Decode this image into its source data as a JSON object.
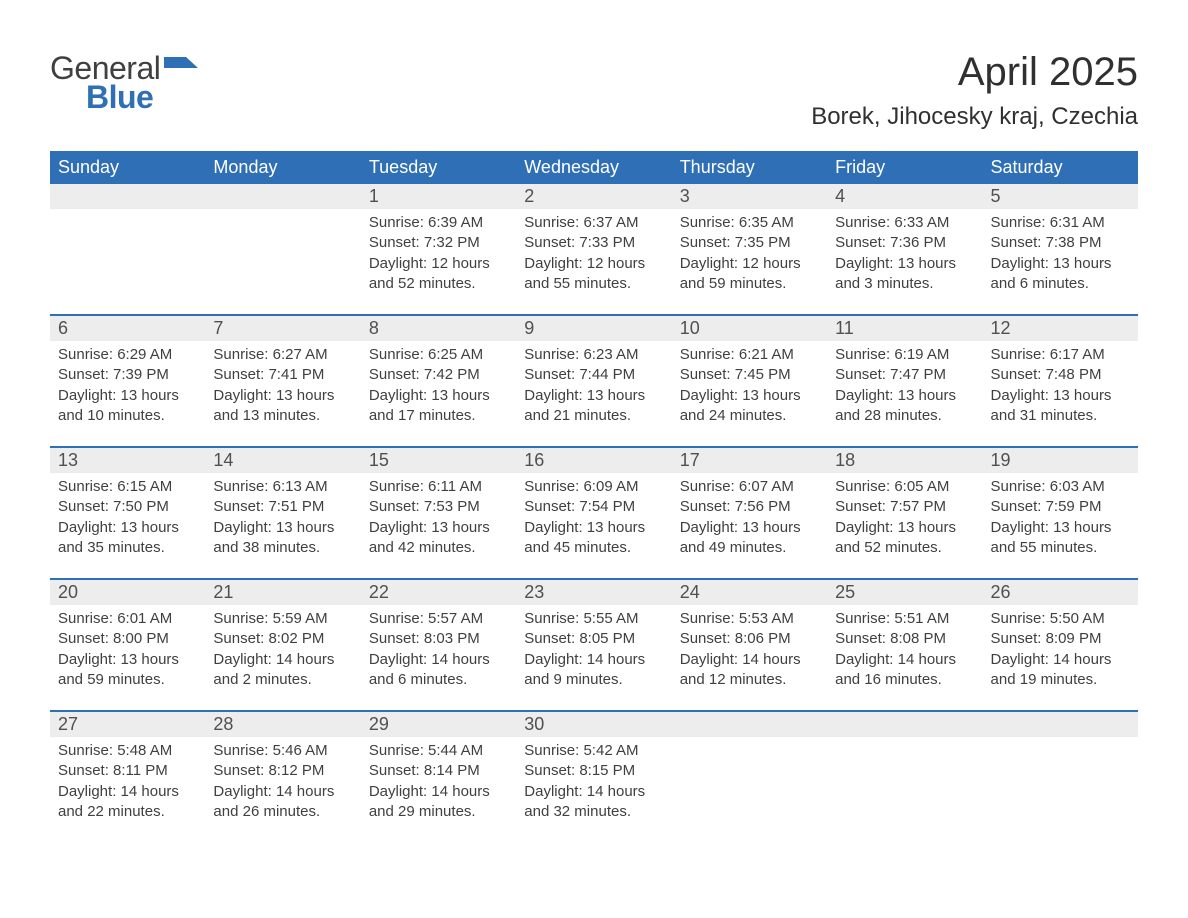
{
  "logo": {
    "word1": "General",
    "word2": "Blue"
  },
  "title": "April 2025",
  "location": "Borek, Jihocesky kraj, Czechia",
  "colors": {
    "header_bg": "#2f6fb5",
    "header_text": "#ffffff",
    "daynum_bg": "#ededed",
    "row_divider": "#2f6fb5",
    "body_text": "#404040",
    "page_bg": "#ffffff",
    "logo_accent": "#2f6fb5"
  },
  "fonts": {
    "title_size_pt": 30,
    "location_size_pt": 18,
    "header_size_pt": 14,
    "daynum_size_pt": 14,
    "cell_size_pt": 11
  },
  "layout": {
    "columns": 7,
    "weeks": 5,
    "start_day_index": 2
  },
  "weekdays": [
    "Sunday",
    "Monday",
    "Tuesday",
    "Wednesday",
    "Thursday",
    "Friday",
    "Saturday"
  ],
  "days": [
    {
      "n": 1,
      "sunrise": "6:39 AM",
      "sunset": "7:32 PM",
      "daylight": "12 hours and 52 minutes."
    },
    {
      "n": 2,
      "sunrise": "6:37 AM",
      "sunset": "7:33 PM",
      "daylight": "12 hours and 55 minutes."
    },
    {
      "n": 3,
      "sunrise": "6:35 AM",
      "sunset": "7:35 PM",
      "daylight": "12 hours and 59 minutes."
    },
    {
      "n": 4,
      "sunrise": "6:33 AM",
      "sunset": "7:36 PM",
      "daylight": "13 hours and 3 minutes."
    },
    {
      "n": 5,
      "sunrise": "6:31 AM",
      "sunset": "7:38 PM",
      "daylight": "13 hours and 6 minutes."
    },
    {
      "n": 6,
      "sunrise": "6:29 AM",
      "sunset": "7:39 PM",
      "daylight": "13 hours and 10 minutes."
    },
    {
      "n": 7,
      "sunrise": "6:27 AM",
      "sunset": "7:41 PM",
      "daylight": "13 hours and 13 minutes."
    },
    {
      "n": 8,
      "sunrise": "6:25 AM",
      "sunset": "7:42 PM",
      "daylight": "13 hours and 17 minutes."
    },
    {
      "n": 9,
      "sunrise": "6:23 AM",
      "sunset": "7:44 PM",
      "daylight": "13 hours and 21 minutes."
    },
    {
      "n": 10,
      "sunrise": "6:21 AM",
      "sunset": "7:45 PM",
      "daylight": "13 hours and 24 minutes."
    },
    {
      "n": 11,
      "sunrise": "6:19 AM",
      "sunset": "7:47 PM",
      "daylight": "13 hours and 28 minutes."
    },
    {
      "n": 12,
      "sunrise": "6:17 AM",
      "sunset": "7:48 PM",
      "daylight": "13 hours and 31 minutes."
    },
    {
      "n": 13,
      "sunrise": "6:15 AM",
      "sunset": "7:50 PM",
      "daylight": "13 hours and 35 minutes."
    },
    {
      "n": 14,
      "sunrise": "6:13 AM",
      "sunset": "7:51 PM",
      "daylight": "13 hours and 38 minutes."
    },
    {
      "n": 15,
      "sunrise": "6:11 AM",
      "sunset": "7:53 PM",
      "daylight": "13 hours and 42 minutes."
    },
    {
      "n": 16,
      "sunrise": "6:09 AM",
      "sunset": "7:54 PM",
      "daylight": "13 hours and 45 minutes."
    },
    {
      "n": 17,
      "sunrise": "6:07 AM",
      "sunset": "7:56 PM",
      "daylight": "13 hours and 49 minutes."
    },
    {
      "n": 18,
      "sunrise": "6:05 AM",
      "sunset": "7:57 PM",
      "daylight": "13 hours and 52 minutes."
    },
    {
      "n": 19,
      "sunrise": "6:03 AM",
      "sunset": "7:59 PM",
      "daylight": "13 hours and 55 minutes."
    },
    {
      "n": 20,
      "sunrise": "6:01 AM",
      "sunset": "8:00 PM",
      "daylight": "13 hours and 59 minutes."
    },
    {
      "n": 21,
      "sunrise": "5:59 AM",
      "sunset": "8:02 PM",
      "daylight": "14 hours and 2 minutes."
    },
    {
      "n": 22,
      "sunrise": "5:57 AM",
      "sunset": "8:03 PM",
      "daylight": "14 hours and 6 minutes."
    },
    {
      "n": 23,
      "sunrise": "5:55 AM",
      "sunset": "8:05 PM",
      "daylight": "14 hours and 9 minutes."
    },
    {
      "n": 24,
      "sunrise": "5:53 AM",
      "sunset": "8:06 PM",
      "daylight": "14 hours and 12 minutes."
    },
    {
      "n": 25,
      "sunrise": "5:51 AM",
      "sunset": "8:08 PM",
      "daylight": "14 hours and 16 minutes."
    },
    {
      "n": 26,
      "sunrise": "5:50 AM",
      "sunset": "8:09 PM",
      "daylight": "14 hours and 19 minutes."
    },
    {
      "n": 27,
      "sunrise": "5:48 AM",
      "sunset": "8:11 PM",
      "daylight": "14 hours and 22 minutes."
    },
    {
      "n": 28,
      "sunrise": "5:46 AM",
      "sunset": "8:12 PM",
      "daylight": "14 hours and 26 minutes."
    },
    {
      "n": 29,
      "sunrise": "5:44 AM",
      "sunset": "8:14 PM",
      "daylight": "14 hours and 29 minutes."
    },
    {
      "n": 30,
      "sunrise": "5:42 AM",
      "sunset": "8:15 PM",
      "daylight": "14 hours and 32 minutes."
    }
  ],
  "labels": {
    "sunrise": "Sunrise:",
    "sunset": "Sunset:",
    "daylight": "Daylight:"
  }
}
